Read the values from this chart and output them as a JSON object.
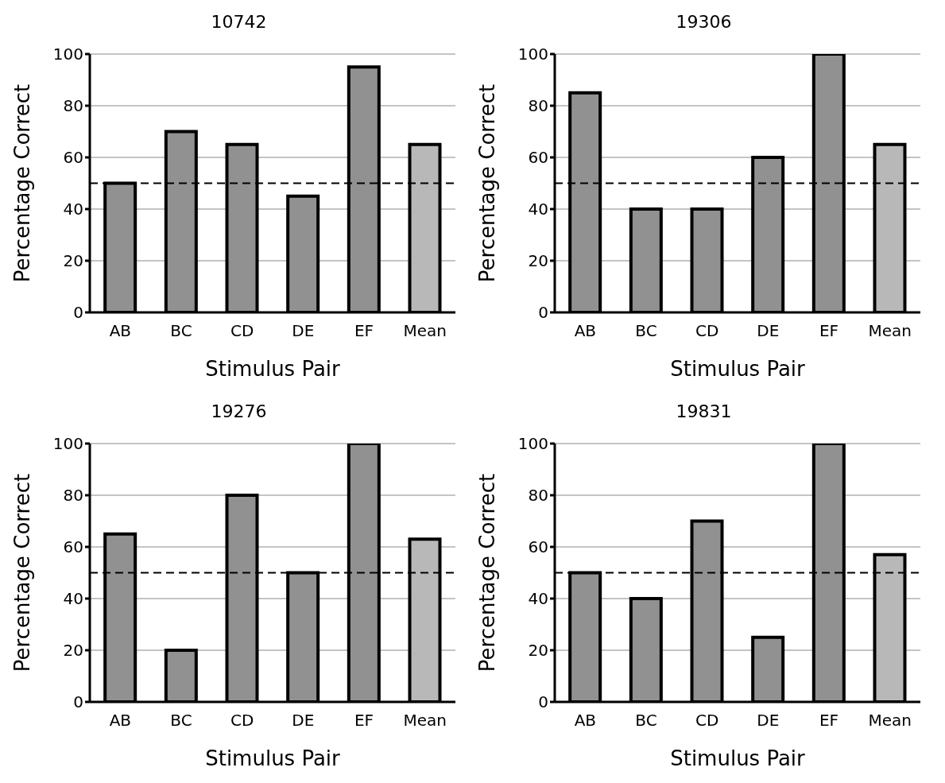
{
  "chart_data": [
    {
      "type": "bar",
      "title": "10742",
      "xlabel": "Stimulus Pair",
      "ylabel": "Percentage Correct",
      "categories": [
        "AB",
        "BC",
        "CD",
        "DE",
        "EF",
        "Mean"
      ],
      "values": [
        50,
        70,
        65,
        45,
        95,
        65
      ],
      "colors": [
        "#919191",
        "#919191",
        "#919191",
        "#919191",
        "#919191",
        "#b8b8b8"
      ],
      "ylim": [
        0,
        100
      ],
      "yticks": [
        0,
        20,
        40,
        60,
        80,
        100
      ],
      "grid": "y",
      "ref_lines": [
        {
          "axis": "y",
          "value": 50,
          "color": "#000000",
          "line_style": "dashed"
        }
      ]
    },
    {
      "type": "bar",
      "title": "19306",
      "xlabel": "Stimulus Pair",
      "ylabel": "Percentage Correct",
      "categories": [
        "AB",
        "BC",
        "CD",
        "DE",
        "EF",
        "Mean"
      ],
      "values": [
        85,
        40,
        40,
        60,
        100,
        65
      ],
      "colors": [
        "#919191",
        "#919191",
        "#919191",
        "#919191",
        "#919191",
        "#b8b8b8"
      ],
      "ylim": [
        0,
        100
      ],
      "yticks": [
        0,
        20,
        40,
        60,
        80,
        100
      ],
      "grid": "y",
      "ref_lines": [
        {
          "axis": "y",
          "value": 50,
          "color": "#000000",
          "line_style": "dashed"
        }
      ]
    },
    {
      "type": "bar",
      "title": "19276",
      "xlabel": "Stimulus Pair",
      "ylabel": "Percentage Correct",
      "categories": [
        "AB",
        "BC",
        "CD",
        "DE",
        "EF",
        "Mean"
      ],
      "values": [
        65,
        20,
        80,
        50,
        100,
        63
      ],
      "colors": [
        "#919191",
        "#919191",
        "#919191",
        "#919191",
        "#919191",
        "#b8b8b8"
      ],
      "ylim": [
        0,
        100
      ],
      "yticks": [
        0,
        20,
        40,
        60,
        80,
        100
      ],
      "grid": "y",
      "ref_lines": [
        {
          "axis": "y",
          "value": 50,
          "color": "#000000",
          "line_style": "dashed"
        }
      ]
    },
    {
      "type": "bar",
      "title": "19831",
      "xlabel": "Stimulus Pair",
      "ylabel": "Percentage Correct",
      "categories": [
        "AB",
        "BC",
        "CD",
        "DE",
        "EF",
        "Mean"
      ],
      "values": [
        50,
        40,
        70,
        25,
        100,
        57
      ],
      "colors": [
        "#919191",
        "#919191",
        "#919191",
        "#919191",
        "#919191",
        "#b8b8b8"
      ],
      "ylim": [
        0,
        100
      ],
      "yticks": [
        0,
        20,
        40,
        60,
        80,
        100
      ],
      "grid": "y",
      "ref_lines": [
        {
          "axis": "y",
          "value": 50,
          "color": "#000000",
          "line_style": "dashed"
        }
      ]
    }
  ]
}
